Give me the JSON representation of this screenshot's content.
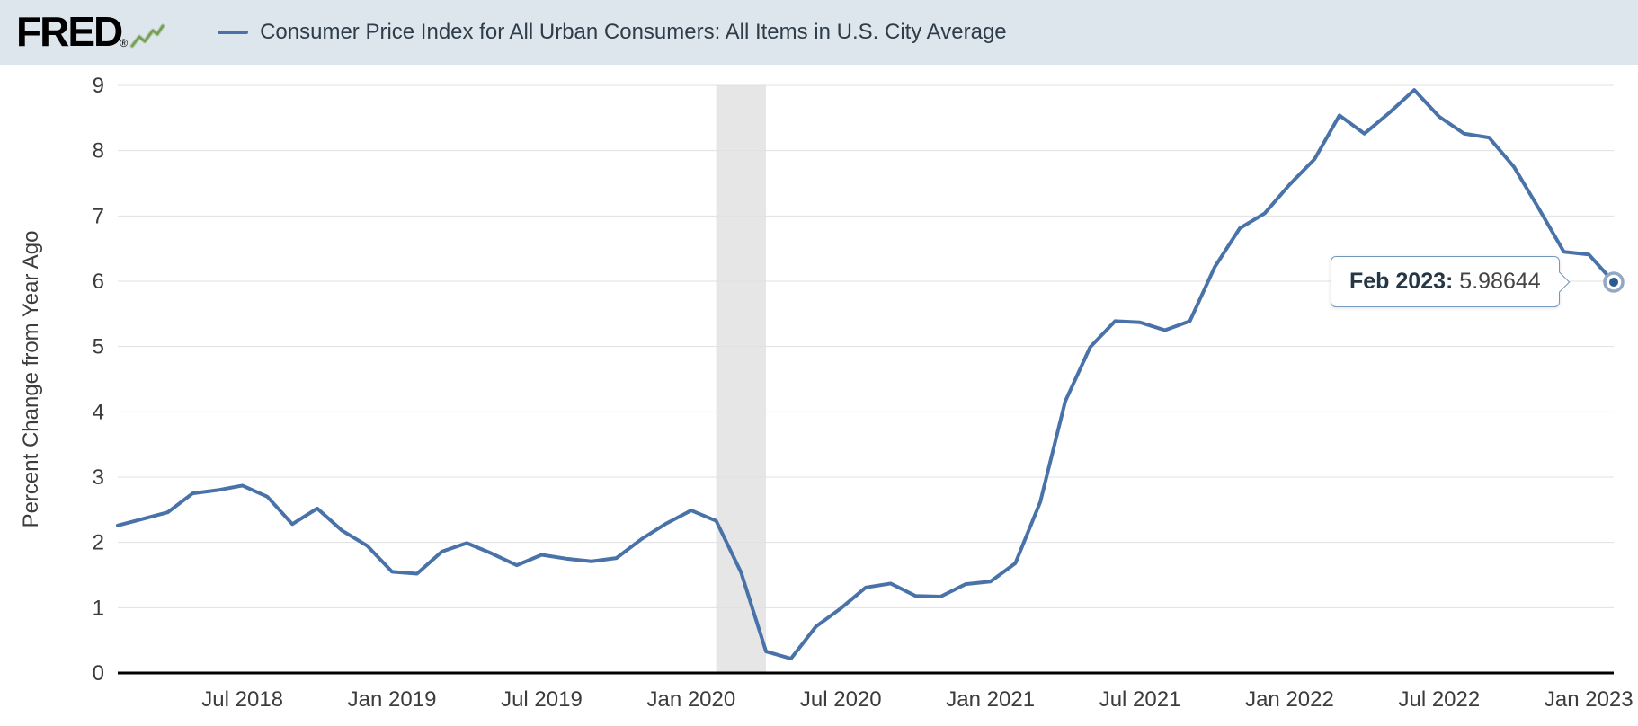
{
  "header": {
    "logo_text": "FRED",
    "logo_registered": "®",
    "series_label": "Consumer Price Index for All Urban Consumers: All Items in U.S. City Average"
  },
  "icons": {
    "fred_logo_chart_icon": "sparkline-up"
  },
  "colors": {
    "header_bg": "#dee6ed",
    "line": "#4872a8",
    "grid": "#e0e0e0",
    "recession_band": "#e6e6e6",
    "axis_text": "#3c3c3c",
    "tooltip_border": "#7398bd",
    "marker_fill": "#2d5a8e",
    "marker_halo": "#93a9c3"
  },
  "chart_data": {
    "type": "line",
    "title": "Consumer Price Index for All Urban Consumers: All Items in U.S. City Average",
    "ylabel": "Percent Change from Year Ago",
    "ylim": [
      0,
      9
    ],
    "y_ticks": [
      0,
      1,
      2,
      3,
      4,
      5,
      6,
      7,
      8,
      9
    ],
    "grid": "horizontal",
    "legend_position": "top-header",
    "x": [
      "Feb 2018",
      "Mar 2018",
      "Apr 2018",
      "May 2018",
      "Jun 2018",
      "Jul 2018",
      "Aug 2018",
      "Sep 2018",
      "Oct 2018",
      "Nov 2018",
      "Dec 2018",
      "Jan 2019",
      "Feb 2019",
      "Mar 2019",
      "Apr 2019",
      "May 2019",
      "Jun 2019",
      "Jul 2019",
      "Aug 2019",
      "Sep 2019",
      "Oct 2019",
      "Nov 2019",
      "Dec 2019",
      "Jan 2020",
      "Feb 2020",
      "Mar 2020",
      "Apr 2020",
      "May 2020",
      "Jun 2020",
      "Jul 2020",
      "Aug 2020",
      "Sep 2020",
      "Oct 2020",
      "Nov 2020",
      "Dec 2020",
      "Jan 2021",
      "Feb 2021",
      "Mar 2021",
      "Apr 2021",
      "May 2021",
      "Jun 2021",
      "Jul 2021",
      "Aug 2021",
      "Sep 2021",
      "Oct 2021",
      "Nov 2021",
      "Dec 2021",
      "Jan 2022",
      "Feb 2022",
      "Mar 2022",
      "Apr 2022",
      "May 2022",
      "Jun 2022",
      "Jul 2022",
      "Aug 2022",
      "Sep 2022",
      "Oct 2022",
      "Nov 2022",
      "Dec 2022",
      "Jan 2023",
      "Feb 2023"
    ],
    "series": [
      {
        "name": "Consumer Price Index for All Urban Consumers: All Items in U.S. City Average",
        "values": [
          2.26,
          2.36,
          2.46,
          2.75,
          2.8,
          2.87,
          2.7,
          2.28,
          2.52,
          2.18,
          1.95,
          1.55,
          1.52,
          1.86,
          1.99,
          1.83,
          1.65,
          1.81,
          1.75,
          1.71,
          1.76,
          2.05,
          2.29,
          2.49,
          2.33,
          1.54,
          0.33,
          0.22,
          0.71,
          0.99,
          1.31,
          1.37,
          1.18,
          1.17,
          1.36,
          1.4,
          1.68,
          2.62,
          4.16,
          4.99,
          5.39,
          5.37,
          5.25,
          5.39,
          6.22,
          6.81,
          7.04,
          7.48,
          7.87,
          8.54,
          8.26,
          8.58,
          8.93,
          8.52,
          8.26,
          8.2,
          7.75,
          7.11,
          6.45,
          6.41,
          5.98644
        ]
      }
    ],
    "x_tick_labels": [
      "Jul 2018",
      "Jan 2019",
      "Jul 2019",
      "Jan 2020",
      "Jul 2020",
      "Jan 2021",
      "Jul 2021",
      "Jan 2022",
      "Jul 2022",
      "Jan 2023"
    ],
    "recession_band": {
      "start": "Feb 2020",
      "end": "Apr 2020"
    },
    "tooltip": {
      "date_label": "Feb 2023:",
      "value": "5.98644"
    }
  }
}
